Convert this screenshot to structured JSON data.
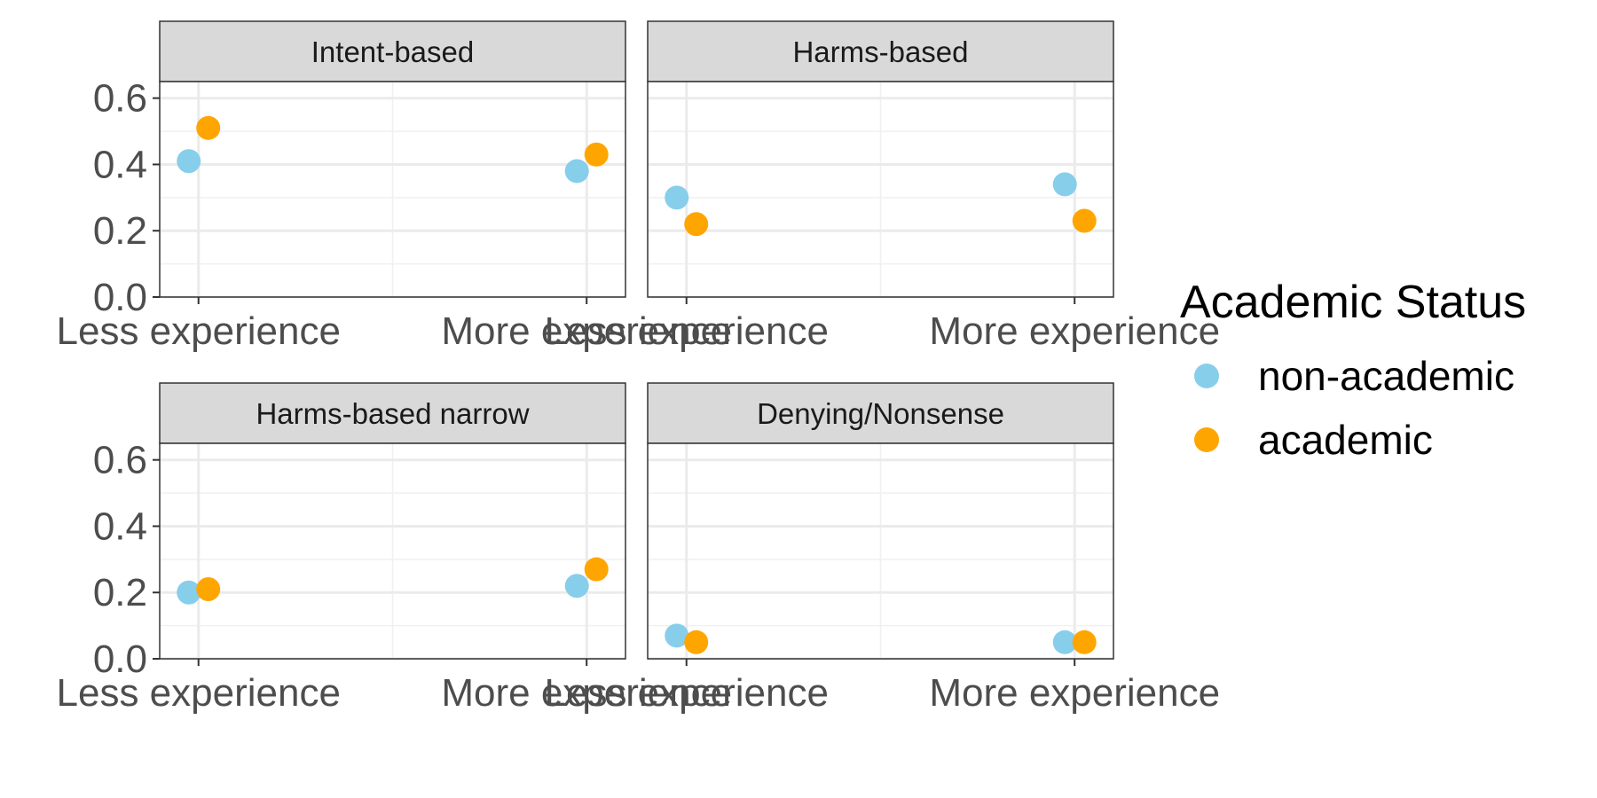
{
  "chart_data": {
    "type": "scatter",
    "categories": [
      "Less experience",
      "More experience"
    ],
    "ylim": [
      0,
      0.65
    ],
    "yticks": [
      0.0,
      0.2,
      0.4,
      0.6
    ],
    "ytick_labels": [
      "0.0",
      "0.2",
      "0.4",
      "0.6"
    ],
    "grid": true,
    "legend": {
      "title": "Academic Status",
      "position": "right",
      "entries": [
        {
          "name": "non-academic",
          "color": "#87CEEB"
        },
        {
          "name": "academic",
          "color": "#FFA500"
        }
      ]
    },
    "panels": [
      {
        "title": "Intent-based",
        "series": [
          {
            "name": "non-academic",
            "values": [
              0.41,
              0.38
            ]
          },
          {
            "name": "academic",
            "values": [
              0.51,
              0.43
            ]
          }
        ]
      },
      {
        "title": "Harms-based",
        "series": [
          {
            "name": "non-academic",
            "values": [
              0.3,
              0.34
            ]
          },
          {
            "name": "academic",
            "values": [
              0.22,
              0.23
            ]
          }
        ]
      },
      {
        "title": "Harms-based narrow",
        "series": [
          {
            "name": "non-academic",
            "values": [
              0.2,
              0.22
            ]
          },
          {
            "name": "academic",
            "values": [
              0.21,
              0.27
            ]
          }
        ]
      },
      {
        "title": "Denying/Nonsense",
        "series": [
          {
            "name": "non-academic",
            "values": [
              0.07,
              0.05
            ]
          },
          {
            "name": "academic",
            "values": [
              0.05,
              0.05
            ]
          }
        ]
      }
    ]
  }
}
